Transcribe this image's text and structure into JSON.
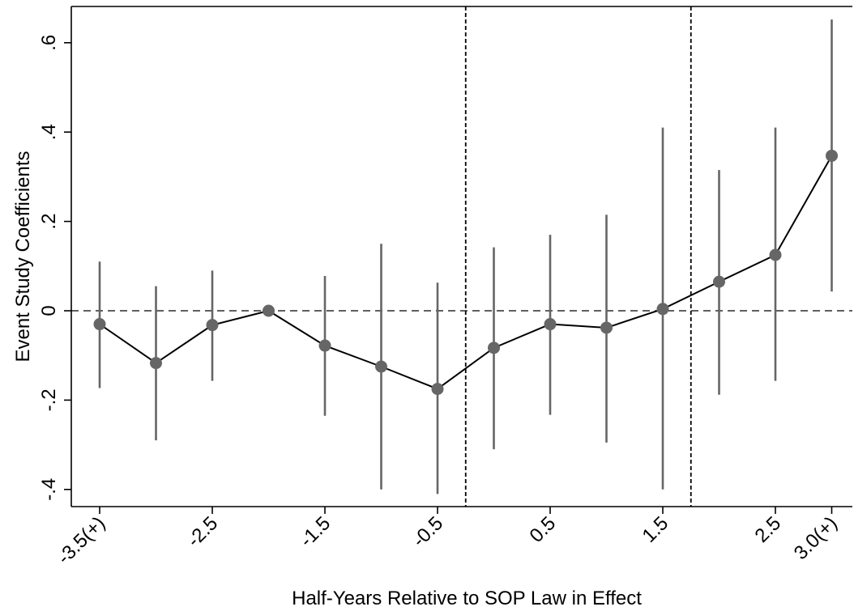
{
  "chart_data": {
    "type": "scatter",
    "xlabel": "Half-Years Relative to SOP Law in Effect",
    "ylabel": "Event Study Coefficients",
    "ylim": [
      -0.44,
      0.69
    ],
    "y_ticks": [
      {
        "value": -0.4,
        "label": "-.4"
      },
      {
        "value": -0.2,
        "label": "-.2"
      },
      {
        "value": 0,
        "label": "0"
      },
      {
        "value": 0.2,
        "label": ".2"
      },
      {
        "value": 0.4,
        "label": ".4"
      },
      {
        "value": 0.6,
        "label": ".6"
      }
    ],
    "x_ticks": [
      {
        "value": -3.5,
        "label": "-3.5(+)"
      },
      {
        "value": -2.5,
        "label": "-2.5"
      },
      {
        "value": -1.5,
        "label": "-1.5"
      },
      {
        "value": -0.5,
        "label": "-0.5"
      },
      {
        "value": 0.5,
        "label": "0.5"
      },
      {
        "value": 1.5,
        "label": "1.5"
      },
      {
        "value": 2.5,
        "label": "2.5"
      },
      {
        "value": 3.0,
        "label": "3.0(+)"
      }
    ],
    "reference_lines": {
      "horizontal_dashed_y": 0,
      "vertical_dashed_x": [
        -0.25,
        1.75
      ]
    },
    "series": [
      {
        "x": [
          -3.5,
          -3.0,
          -2.5,
          -2.0,
          -1.5,
          -1.0,
          -0.5,
          0.0,
          0.5,
          1.0,
          1.5,
          2.0,
          2.5,
          3.0
        ],
        "y": [
          -0.03,
          -0.117,
          -0.032,
          0.0,
          -0.078,
          -0.125,
          -0.175,
          -0.083,
          -0.03,
          -0.038,
          0.004,
          0.065,
          0.125,
          0.347
        ],
        "lower": [
          -0.173,
          -0.29,
          -0.157,
          0.0,
          -0.235,
          -0.4,
          -0.41,
          -0.31,
          -0.233,
          -0.295,
          -0.4,
          -0.188,
          -0.157,
          0.043
        ],
        "upper": [
          0.11,
          0.055,
          0.09,
          0.0,
          0.078,
          0.15,
          0.063,
          0.142,
          0.17,
          0.215,
          0.41,
          0.315,
          0.41,
          0.652
        ]
      }
    ],
    "colors": {
      "marker": "#666666",
      "ci": "#666666",
      "line": "#000000",
      "axis": "#000000"
    },
    "grid": false,
    "legend": "none"
  }
}
